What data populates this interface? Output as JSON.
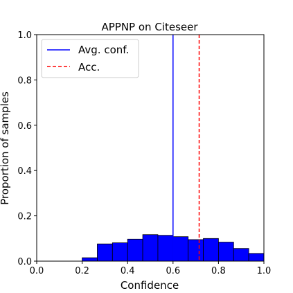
{
  "chart_data": {
    "type": "bar",
    "title": "APPNP on Citeseer",
    "xlabel": "Confidence",
    "ylabel": "Proportion of samples",
    "xlim": [
      0.0,
      1.0
    ],
    "ylim": [
      0.0,
      1.0
    ],
    "xticks": [
      "0.0",
      "0.2",
      "0.4",
      "0.6",
      "0.8",
      "1.0"
    ],
    "yticks": [
      "0.0",
      "0.2",
      "0.4",
      "0.6",
      "0.8",
      "1.0"
    ],
    "bin_edges": [
      0.0,
      0.0667,
      0.1333,
      0.2,
      0.2667,
      0.3333,
      0.4,
      0.4667,
      0.5333,
      0.6,
      0.6667,
      0.7333,
      0.8,
      0.8667,
      0.9333,
      1.0
    ],
    "proportions": [
      0.0,
      0.0,
      0.0,
      0.015,
      0.076,
      0.081,
      0.097,
      0.117,
      0.114,
      0.108,
      0.095,
      0.1,
      0.084,
      0.056,
      0.034
    ],
    "bar_color": "#0000ff",
    "bar_edge_color": "#000000",
    "reference_lines": [
      {
        "name": "Avg. conf.",
        "x": 0.6,
        "color": "#0000ff",
        "style": "solid"
      },
      {
        "name": "Acc.",
        "x": 0.715,
        "color": "#ff0000",
        "style": "dashed"
      }
    ],
    "legend": {
      "position": "top-left",
      "entries": [
        "Avg. conf.",
        "Acc."
      ]
    },
    "grid": false
  }
}
